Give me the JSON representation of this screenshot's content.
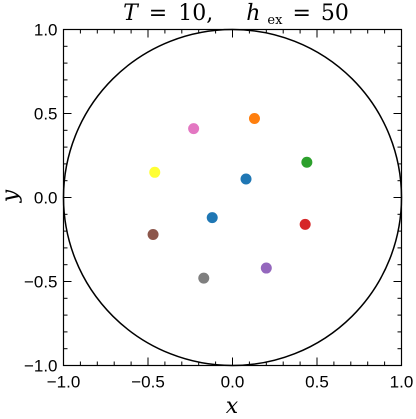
{
  "chart_data": {
    "type": "scatter",
    "title": {
      "T_symbol": "T",
      "T_value": "10,",
      "h_symbol": "h",
      "h_subscript": "ex",
      "h_value": "50"
    },
    "xlabel": "x",
    "ylabel": "y",
    "xlim": [
      -1.0,
      1.0
    ],
    "ylim": [
      -1.0,
      1.0
    ],
    "xticks": [
      -1.0,
      -0.5,
      0.0,
      0.5,
      1.0
    ],
    "yticks": [
      -1.0,
      -0.5,
      0.0,
      0.5,
      1.0
    ],
    "xtick_labels": [
      "−1.0",
      "−0.5",
      "0.0",
      "0.5",
      "1.0"
    ],
    "ytick_labels": [
      "−1.0",
      "−0.5",
      "0.0",
      "0.5",
      "1.0"
    ],
    "grid": false,
    "boundary_circle": {
      "center": [
        0,
        0
      ],
      "radius": 1.0,
      "color": "#000000"
    },
    "points": [
      {
        "x": 0.13,
        "y": 0.47,
        "color": "#ff7f0e"
      },
      {
        "x": -0.23,
        "y": 0.41,
        "color": "#e377c2"
      },
      {
        "x": 0.44,
        "y": 0.21,
        "color": "#2ca02c"
      },
      {
        "x": -0.46,
        "y": 0.15,
        "color": "#ffff33"
      },
      {
        "x": 0.08,
        "y": 0.11,
        "color": "#1f77b4"
      },
      {
        "x": -0.12,
        "y": -0.12,
        "color": "#1f77b4"
      },
      {
        "x": 0.43,
        "y": -0.16,
        "color": "#d62728"
      },
      {
        "x": -0.47,
        "y": -0.22,
        "color": "#8c564b"
      },
      {
        "x": 0.2,
        "y": -0.42,
        "color": "#9467bd"
      },
      {
        "x": -0.17,
        "y": -0.48,
        "color": "#7f7f7f"
      }
    ]
  }
}
